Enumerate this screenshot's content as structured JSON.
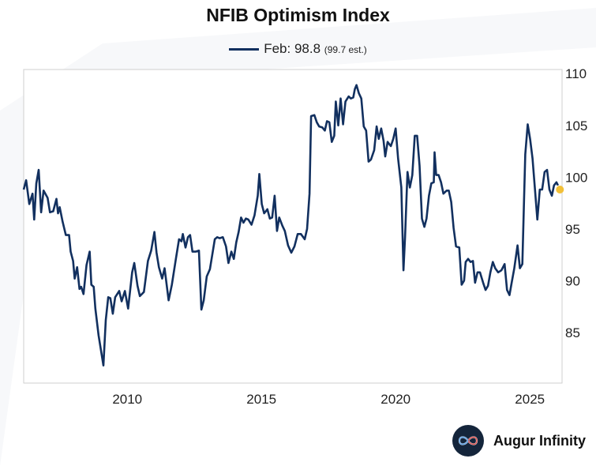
{
  "chart_data": {
    "type": "line",
    "title": "NFIB Optimism Index",
    "legend": {
      "label": "Feb: 98.8",
      "note": "(99.7 est.)",
      "placement": "top-center"
    },
    "xlabel": "",
    "ylabel": "",
    "xlim": [
      2006.14,
      2026.2
    ],
    "ylim": [
      80.1,
      110.4
    ],
    "x_ticks": [
      2010,
      2015,
      2020,
      2025
    ],
    "x_tick_labels": [
      "2010",
      "2015",
      "2020",
      "2025"
    ],
    "y_ticks": [
      85,
      90,
      95,
      100,
      105,
      110
    ],
    "y_tick_labels": [
      "85",
      "90",
      "95",
      "100",
      "105",
      "110"
    ],
    "y_axis_side": "right",
    "grid": false,
    "series": [
      {
        "color": "#12305f",
        "x": [
          2006.14,
          2006.23,
          2006.35,
          2006.47,
          2006.53,
          2006.61,
          2006.7,
          2006.79,
          2006.88,
          2007.03,
          2007.12,
          2007.24,
          2007.36,
          2007.42,
          2007.48,
          2007.59,
          2007.71,
          2007.83,
          2007.89,
          2007.98,
          2008.04,
          2008.13,
          2008.22,
          2008.28,
          2008.37,
          2008.48,
          2008.6,
          2008.66,
          2008.75,
          2008.81,
          2008.93,
          2009.11,
          2009.2,
          2009.29,
          2009.37,
          2009.46,
          2009.55,
          2009.7,
          2009.79,
          2009.91,
          2010.03,
          2010.18,
          2010.26,
          2010.38,
          2010.47,
          2010.62,
          2010.77,
          2010.89,
          2011.01,
          2011.09,
          2011.18,
          2011.3,
          2011.39,
          2011.54,
          2011.66,
          2011.81,
          2011.93,
          2012.02,
          2012.07,
          2012.17,
          2012.26,
          2012.34,
          2012.43,
          2012.55,
          2012.67,
          2012.76,
          2012.85,
          2012.96,
          2013.08,
          2013.26,
          2013.35,
          2013.44,
          2013.56,
          2013.68,
          2013.77,
          2013.88,
          2013.97,
          2014.06,
          2014.15,
          2014.24,
          2014.33,
          2014.42,
          2014.51,
          2014.63,
          2014.74,
          2014.86,
          2014.92,
          2015.01,
          2015.1,
          2015.22,
          2015.31,
          2015.4,
          2015.49,
          2015.58,
          2015.66,
          2015.78,
          2015.87,
          2015.99,
          2016.11,
          2016.23,
          2016.35,
          2016.47,
          2016.61,
          2016.7,
          2016.79,
          2016.85,
          2016.97,
          2017.06,
          2017.15,
          2017.27,
          2017.36,
          2017.44,
          2017.53,
          2017.62,
          2017.71,
          2017.77,
          2017.86,
          2017.95,
          2018.04,
          2018.13,
          2018.25,
          2018.33,
          2018.42,
          2018.48,
          2018.54,
          2018.63,
          2018.72,
          2018.81,
          2018.9,
          2018.99,
          2019.08,
          2019.2,
          2019.29,
          2019.37,
          2019.46,
          2019.55,
          2019.61,
          2019.7,
          2019.82,
          2019.91,
          2020.0,
          2020.09,
          2020.21,
          2020.29,
          2020.35,
          2020.44,
          2020.53,
          2020.62,
          2020.71,
          2020.8,
          2020.89,
          2020.98,
          2021.07,
          2021.15,
          2021.24,
          2021.33,
          2021.42,
          2021.45,
          2021.51,
          2021.6,
          2021.69,
          2021.78,
          2021.9,
          2021.98,
          2022.07,
          2022.16,
          2022.25,
          2022.37,
          2022.46,
          2022.55,
          2022.61,
          2022.7,
          2022.79,
          2022.88,
          2022.96,
          2023.05,
          2023.14,
          2023.26,
          2023.35,
          2023.44,
          2023.53,
          2023.62,
          2023.71,
          2023.82,
          2023.94,
          2024.06,
          2024.15,
          2024.24,
          2024.33,
          2024.42,
          2024.54,
          2024.63,
          2024.72,
          2024.78,
          2024.83,
          2024.92,
          2025.01,
          2025.1,
          2025.19,
          2025.28,
          2025.37,
          2025.46,
          2025.55,
          2025.64,
          2025.73,
          2025.82,
          2025.9,
          2025.99,
          2026.05
        ],
        "y": [
          98.8,
          99.7,
          97.4,
          98.4,
          95.9,
          99.4,
          100.7,
          96.6,
          98.7,
          98.0,
          96.6,
          96.7,
          97.9,
          96.5,
          97.1,
          95.7,
          94.4,
          94.4,
          92.8,
          91.9,
          90.2,
          91.3,
          89.2,
          89.4,
          88.7,
          91.5,
          92.8,
          89.6,
          89.4,
          87.3,
          84.7,
          81.8,
          86.2,
          88.4,
          88.3,
          86.8,
          88.4,
          89.0,
          88.0,
          89.0,
          87.3,
          90.8,
          91.7,
          89.5,
          88.5,
          88.9,
          91.9,
          92.9,
          94.7,
          92.7,
          91.3,
          90.2,
          91.2,
          88.1,
          89.6,
          92.1,
          94.0,
          93.8,
          94.5,
          93.2,
          94.2,
          94.4,
          92.8,
          92.8,
          92.9,
          87.2,
          88.1,
          90.4,
          91.1,
          94.0,
          94.2,
          94.1,
          94.2,
          93.3,
          91.7,
          92.8,
          92.1,
          93.7,
          94.7,
          96.1,
          95.6,
          96.0,
          95.9,
          95.4,
          96.3,
          98.2,
          100.3,
          97.4,
          96.5,
          96.9,
          96.0,
          96.1,
          98.2,
          94.8,
          96.1,
          95.3,
          94.8,
          93.4,
          92.7,
          93.3,
          94.5,
          94.5,
          94.0,
          95.0,
          98.4,
          105.9,
          106.0,
          105.3,
          104.9,
          104.8,
          104.5,
          105.4,
          105.3,
          103.4,
          104.0,
          107.3,
          105.0,
          107.6,
          105.1,
          107.3,
          107.8,
          107.6,
          107.7,
          108.5,
          108.9,
          108.1,
          107.6,
          104.9,
          104.5,
          101.5,
          101.7,
          102.6,
          104.9,
          103.7,
          104.7,
          103.5,
          102.0,
          103.4,
          103.0,
          103.7,
          104.7,
          101.8,
          99.0,
          91.0,
          94.2,
          100.5,
          99.0,
          100.2,
          104.0,
          104.0,
          101.1,
          96.0,
          95.2,
          96.0,
          98.2,
          99.4,
          99.5,
          102.4,
          100.2,
          100.2,
          99.5,
          98.4,
          98.7,
          98.7,
          97.6,
          95.1,
          93.3,
          93.2,
          89.6,
          90.0,
          91.8,
          92.1,
          91.8,
          91.9,
          89.8,
          90.8,
          90.8,
          89.8,
          89.1,
          89.5,
          90.8,
          91.8,
          91.2,
          90.8,
          91.0,
          91.6,
          89.1,
          88.6,
          89.9,
          91.2,
          93.4,
          91.2,
          91.6,
          97.4,
          102.2,
          105.1,
          103.7,
          101.8,
          98.8,
          95.9,
          98.8,
          98.8,
          100.5,
          100.7,
          98.8,
          98.2,
          99.2,
          99.5,
          99.2
        ]
      }
    ],
    "latest_point": {
      "x": 2026.12,
      "y": 98.8,
      "color": "#f2c038"
    }
  },
  "brand": {
    "name": "Augur Infinity",
    "icon": "infinity-logo"
  }
}
